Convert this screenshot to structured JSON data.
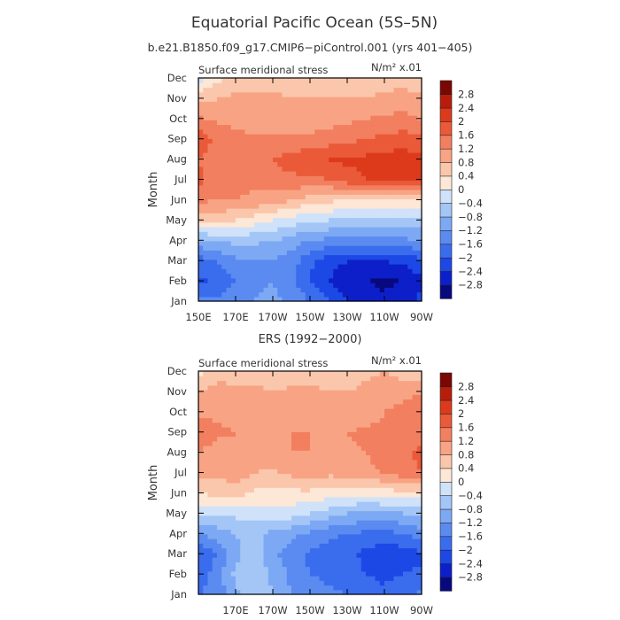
{
  "figure": {
    "title": "Equatorial Pacific Ocean (5S–5N)",
    "subtitle": "b.e21.B1850.f09_g17.CMIP6−piControl.001 (yrs 401−405)"
  },
  "colors": {
    "scale": [
      "#08087f",
      "#0d1fc8",
      "#1c48e6",
      "#3a6cee",
      "#5b8bf0",
      "#7da9f4",
      "#a3c6f7",
      "#cfe2f9",
      "#fde7d6",
      "#fbc7ac",
      "#f8a484",
      "#f27f5f",
      "#ea5a39",
      "#dd3a1c",
      "#b81d0b",
      "#7a0703"
    ]
  },
  "chart_data": [
    {
      "type": "heatmap",
      "panel_title": "",
      "left_label": "Surface meridional stress",
      "right_label": "N/m² x.01",
      "ylabel": "Month",
      "xticks": [
        "150E",
        "170E",
        "170W",
        "150W",
        "130W",
        "110W",
        "90W"
      ],
      "yticks": [
        "Jan",
        "Feb",
        "Mar",
        "Apr",
        "May",
        "Jun",
        "Jul",
        "Aug",
        "Sep",
        "Oct",
        "Nov",
        "Dec"
      ],
      "colorbar_labels": [
        "2.8",
        "2.4",
        "2",
        "1.6",
        "1.2",
        "0.8",
        "0.4",
        "0",
        "−0.4",
        "−0.8",
        "−1.2",
        "−1.6",
        "−2",
        "−2.4",
        "−2.8"
      ],
      "x": [
        150,
        160,
        170,
        180,
        190,
        200,
        210,
        220,
        230,
        240,
        250,
        260,
        270
      ],
      "months": [
        "Jan",
        "Feb",
        "Mar",
        "Apr",
        "May",
        "Jun",
        "Jul",
        "Aug",
        "Sep",
        "Oct",
        "Nov",
        "Dec"
      ],
      "z": [
        [
          -1.4,
          -1.5,
          -1.4,
          -1.2,
          -1.1,
          -1.3,
          -1.6,
          -2.0,
          -2.4,
          -2.6,
          -2.7,
          -2.5,
          -2.3
        ],
        [
          -2.1,
          -1.9,
          -1.6,
          -1.3,
          -1.2,
          -1.5,
          -2.0,
          -2.4,
          -2.6,
          -2.8,
          -2.9,
          -2.8,
          -2.5
        ],
        [
          -1.8,
          -1.6,
          -1.3,
          -1.2,
          -1.2,
          -1.4,
          -1.9,
          -2.3,
          -2.4,
          -2.4,
          -2.4,
          -2.3,
          -2.1
        ],
        [
          -0.9,
          -0.8,
          -0.7,
          -0.7,
          -0.8,
          -1.0,
          -1.2,
          -1.3,
          -1.4,
          -1.4,
          -1.4,
          -1.3,
          -1.2
        ],
        [
          0.6,
          0.5,
          0.4,
          0.2,
          0.0,
          -0.2,
          -0.3,
          -0.4,
          -0.5,
          -0.5,
          -0.5,
          -0.5,
          -0.5
        ],
        [
          1.3,
          1.2,
          1.2,
          1.1,
          1.0,
          0.8,
          0.6,
          0.5,
          0.4,
          0.3,
          0.3,
          0.4,
          0.4
        ],
        [
          1.7,
          1.4,
          1.3,
          1.3,
          1.4,
          1.5,
          1.5,
          1.6,
          1.8,
          2.0,
          2.2,
          2.3,
          2.2
        ],
        [
          1.6,
          1.3,
          1.3,
          1.4,
          1.6,
          1.8,
          1.9,
          2.0,
          2.1,
          2.1,
          2.2,
          2.2,
          2.1
        ],
        [
          1.9,
          1.5,
          1.4,
          1.3,
          1.3,
          1.3,
          1.3,
          1.4,
          1.5,
          1.6,
          1.7,
          1.8,
          1.7
        ],
        [
          1.3,
          1.1,
          1.0,
          0.9,
          0.9,
          0.9,
          1.0,
          1.0,
          1.1,
          1.2,
          1.3,
          1.3,
          1.2
        ],
        [
          0.7,
          0.8,
          0.9,
          0.9,
          0.9,
          0.8,
          0.8,
          0.8,
          0.8,
          0.8,
          0.9,
          1.0,
          0.9
        ],
        [
          -0.2,
          0.3,
          0.5,
          0.6,
          0.6,
          0.6,
          0.6,
          0.6,
          0.7,
          0.6,
          0.6,
          0.6,
          0.5
        ]
      ]
    },
    {
      "type": "heatmap",
      "panel_title": "ERS (1992−2000)",
      "left_label": "Surface meridional stress",
      "right_label": "N/m² x.01",
      "ylabel": "Month",
      "xticks": [
        "",
        "170E",
        "170W",
        "150W",
        "130W",
        "110W",
        "90W"
      ],
      "yticks": [
        "Jan",
        "Feb",
        "Mar",
        "Apr",
        "May",
        "Jun",
        "Jul",
        "Aug",
        "Sep",
        "Oct",
        "Nov",
        "Dec"
      ],
      "colorbar_labels": [
        "2.8",
        "2.4",
        "2",
        "1.6",
        "1.2",
        "0.8",
        "0.4",
        "0",
        "−0.4",
        "−0.8",
        "−1.2",
        "−1.6",
        "−2",
        "−2.4",
        "−2.8"
      ],
      "x": [
        150,
        160,
        170,
        180,
        190,
        200,
        210,
        220,
        230,
        240,
        250,
        260,
        270
      ],
      "months": [
        "Jan",
        "Feb",
        "Mar",
        "Apr",
        "May",
        "Jun",
        "Jul",
        "Aug",
        "Sep",
        "Oct",
        "Nov",
        "Dec"
      ],
      "z": [
        [
          -1.6,
          -1.5,
          -0.9,
          -0.5,
          -0.8,
          -1.2,
          -1.4,
          -1.5,
          -1.6,
          -1.8,
          -1.9,
          -1.7,
          -1.5
        ],
        [
          -1.8,
          -1.4,
          -0.7,
          -0.4,
          -0.9,
          -1.3,
          -1.6,
          -1.7,
          -1.8,
          -2.0,
          -2.1,
          -2.0,
          -1.9
        ],
        [
          -2.0,
          -1.6,
          -0.9,
          -0.6,
          -1.1,
          -1.4,
          -1.7,
          -1.8,
          -1.9,
          -2.1,
          -2.3,
          -2.2,
          -2.1
        ],
        [
          -1.2,
          -1.0,
          -0.8,
          -0.7,
          -0.9,
          -1.1,
          -1.3,
          -1.5,
          -1.6,
          -1.7,
          -1.8,
          -1.6,
          -1.4
        ],
        [
          -0.3,
          -0.4,
          -0.3,
          -0.2,
          -0.1,
          -0.2,
          -0.4,
          -0.6,
          -0.8,
          -0.9,
          -0.9,
          -0.8,
          -0.7
        ],
        [
          0.4,
          0.5,
          0.6,
          0.3,
          0.2,
          0.3,
          0.3,
          0.2,
          0.1,
          0.1,
          0.2,
          0.3,
          0.3
        ],
        [
          1.0,
          0.9,
          1.0,
          0.8,
          0.7,
          0.9,
          1.0,
          0.9,
          1.0,
          1.1,
          1.2,
          1.4,
          1.6
        ],
        [
          1.2,
          1.0,
          1.1,
          1.1,
          1.2,
          1.2,
          1.2,
          1.1,
          1.1,
          1.2,
          1.4,
          1.5,
          1.7
        ],
        [
          1.5,
          1.3,
          1.2,
          1.1,
          1.1,
          1.2,
          1.2,
          1.2,
          1.2,
          1.3,
          1.3,
          1.3,
          1.5
        ],
        [
          1.1,
          1.1,
          1.0,
          1.0,
          0.9,
          1.0,
          1.1,
          1.0,
          0.9,
          1.0,
          1.2,
          1.3,
          1.5
        ],
        [
          0.8,
          1.0,
          0.9,
          0.9,
          0.8,
          0.9,
          0.9,
          0.8,
          0.8,
          0.9,
          1.0,
          1.1,
          1.2
        ],
        [
          0.2,
          0.6,
          0.6,
          0.6,
          0.5,
          0.5,
          0.6,
          0.6,
          0.6,
          0.7,
          0.8,
          0.6,
          0.5
        ]
      ]
    }
  ]
}
